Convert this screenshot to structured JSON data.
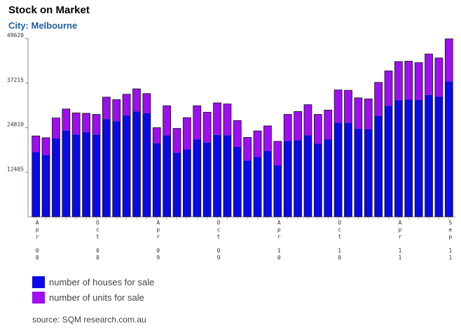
{
  "chart_data": {
    "type": "bar",
    "stacked": true,
    "title": "Stock on Market",
    "subtitle": "City: Melbourne",
    "yticks": [
      12405,
      24810,
      37215,
      49620
    ],
    "ylim": [
      0,
      49620
    ],
    "xtick_labels": [
      {
        "index": 0,
        "lines": [
          "A",
          "p",
          "r",
          "",
          "0",
          "8"
        ]
      },
      {
        "index": 6,
        "lines": [
          "O",
          "c",
          "t",
          "",
          "0",
          "8"
        ]
      },
      {
        "index": 12,
        "lines": [
          "A",
          "p",
          "r",
          "",
          "0",
          "9"
        ]
      },
      {
        "index": 18,
        "lines": [
          "O",
          "c",
          "t",
          "",
          "0",
          "9"
        ]
      },
      {
        "index": 24,
        "lines": [
          "A",
          "p",
          "r",
          "",
          "1",
          "0"
        ]
      },
      {
        "index": 30,
        "lines": [
          "O",
          "c",
          "t",
          "",
          "1",
          "0"
        ]
      },
      {
        "index": 36,
        "lines": [
          "A",
          "p",
          "r",
          "",
          "1",
          "1"
        ]
      },
      {
        "index": 41,
        "lines": [
          "S",
          "e",
          "p",
          "",
          "1",
          "1"
        ]
      }
    ],
    "series": [
      {
        "name": "number of houses for sale",
        "color": "#0a0ae8",
        "values": [
          18000,
          17200,
          21800,
          24000,
          22900,
          23600,
          22900,
          27200,
          26600,
          28200,
          29300,
          28800,
          20500,
          22700,
          17800,
          18800,
          21500,
          20700,
          22800,
          22700,
          19500,
          15700,
          16700,
          18300,
          14300,
          21100,
          21300,
          22700,
          20400,
          21500,
          26200,
          26200,
          24500,
          24400,
          28100,
          30900,
          32400,
          32600,
          32500,
          33900,
          33500,
          37700
        ]
      },
      {
        "name": "number of units for sale",
        "color": "#9e0ef0",
        "values": [
          4500,
          4800,
          5700,
          6000,
          6000,
          5200,
          5600,
          6100,
          6000,
          5900,
          6300,
          5500,
          4300,
          8200,
          6800,
          8800,
          9400,
          8400,
          8900,
          8700,
          7300,
          6400,
          7200,
          7000,
          6700,
          7400,
          8000,
          8500,
          8100,
          8200,
          9100,
          9000,
          8600,
          8400,
          9300,
          9700,
          10800,
          10700,
          10400,
          11400,
          10700,
          11800
        ]
      }
    ]
  },
  "legend": {
    "houses_label": "number of houses for sale",
    "units_label": "number of units for sale"
  },
  "source": "source: SQM research.com.au"
}
